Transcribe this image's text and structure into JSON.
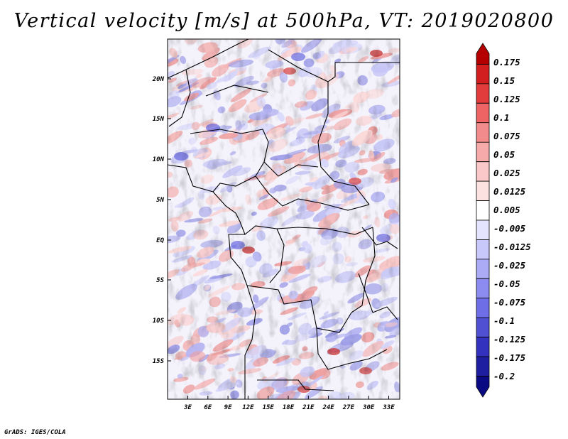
{
  "title": "Vertical velocity [m/s] at 500hPa, VT: 2019020800",
  "footer": "GrADS: IGES/COLA",
  "map": {
    "lat_labels": [
      "20N",
      "15N",
      "10N",
      "5N",
      "EQ",
      "5S",
      "10S",
      "15S"
    ],
    "lon_labels": [
      "3E",
      "6E",
      "9E",
      "12E",
      "15E",
      "18E",
      "21E",
      "24E",
      "27E",
      "30E",
      "33E"
    ]
  },
  "colorbar": {
    "labels": [
      "0.175",
      "0.15",
      "0.125",
      "0.1",
      "0.075",
      "0.05",
      "0.025",
      "0.0125",
      "0.005",
      "-0.005",
      "-0.0125",
      "-0.025",
      "-0.05",
      "-0.075",
      "-0.1",
      "-0.125",
      "-0.175",
      "-0.2"
    ],
    "colors": [
      "#b40000",
      "#d21e1e",
      "#e23c3c",
      "#ee6464",
      "#f28c8c",
      "#f7aaaa",
      "#fac8c8",
      "#fde2e2",
      "#ffffff",
      "#e4e4ff",
      "#c8c8fa",
      "#aaaaf5",
      "#8c8cf0",
      "#6e6ee6",
      "#5050d2",
      "#3232be",
      "#1e1ea0",
      "#0a0a82"
    ]
  }
}
